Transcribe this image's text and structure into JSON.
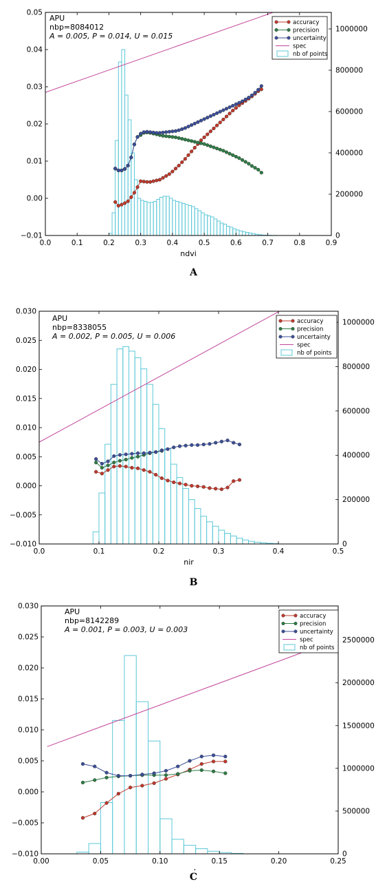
{
  "panels": [
    {
      "letter": "A"
    },
    {
      "letter": "B"
    },
    {
      "letter": "C"
    }
  ],
  "colors": {
    "accuracy": "#c0392b",
    "precision": "#2e7d46",
    "uncertainty": "#3b4f9a",
    "spec": "#c2449a",
    "hist": "#5cc8d8"
  },
  "chart_data": [
    {
      "type": "line",
      "xlabel": "ndvi",
      "ylabel": "",
      "xlim": [
        0.0,
        0.9
      ],
      "ylim": [
        -0.01,
        0.05
      ],
      "y2lim": [
        0,
        1080000
      ],
      "x_ticks": [
        "0.0",
        "0.1",
        "0.2",
        "0.3",
        "0.4",
        "0.5",
        "0.6",
        "0.7",
        "0.8",
        "0.9"
      ],
      "x_tick_values": [
        0.0,
        0.1,
        0.2,
        0.3,
        0.4,
        0.5,
        0.6,
        0.7,
        0.8,
        0.9
      ],
      "y_ticks": [
        "−0.01",
        "0.00",
        "0.01",
        "0.02",
        "0.03",
        "0.04",
        "0.05"
      ],
      "y_tick_values": [
        -0.01,
        0.0,
        0.01,
        0.02,
        0.03,
        0.04,
        0.05
      ],
      "y2_ticks": [
        "0",
        "200000",
        "400000",
        "600000",
        "800000",
        "1000000"
      ],
      "y2_tick_values": [
        0,
        200000,
        400000,
        600000,
        800000,
        1000000
      ],
      "annotation": [
        "APU",
        "nbp=8084012",
        "A = 0.005, P = 0.014, U = 0.015"
      ],
      "legend": [
        "accuracy",
        "precision",
        "uncertainty",
        "spec",
        "nb of points"
      ],
      "legend_position": "top-right",
      "spec": {
        "x": [
          0.0,
          0.9
        ],
        "y": [
          0.0285,
          0.0555
        ]
      },
      "histogram": {
        "bin_width": 0.01,
        "x": [
          0.2,
          0.21,
          0.22,
          0.23,
          0.24,
          0.25,
          0.26,
          0.27,
          0.28,
          0.29,
          0.3,
          0.31,
          0.32,
          0.33,
          0.34,
          0.35,
          0.36,
          0.37,
          0.38,
          0.39,
          0.4,
          0.41,
          0.42,
          0.43,
          0.44,
          0.45,
          0.46,
          0.47,
          0.48,
          0.49,
          0.5,
          0.51,
          0.52,
          0.53,
          0.54,
          0.55,
          0.56,
          0.57,
          0.58,
          0.59,
          0.6,
          0.61,
          0.62,
          0.63,
          0.64,
          0.65,
          0.66,
          0.67,
          0.68,
          0.69,
          0.7,
          0.71,
          0.72
        ],
        "counts": [
          10000,
          110000,
          460000,
          840000,
          900000,
          680000,
          560000,
          400000,
          270000,
          180000,
          170000,
          165000,
          160000,
          160000,
          165000,
          175000,
          185000,
          190000,
          190000,
          180000,
          170000,
          165000,
          160000,
          155000,
          150000,
          145000,
          140000,
          130000,
          120000,
          110000,
          100000,
          95000,
          90000,
          80000,
          70000,
          60000,
          55000,
          45000,
          40000,
          32000,
          27000,
          22000,
          18000,
          15000,
          12000,
          9000,
          6000,
          4000,
          2000,
          1500,
          1000,
          500,
          300
        ]
      },
      "series": [
        {
          "name": "accuracy",
          "x": [
            0.22,
            0.23,
            0.24,
            0.25,
            0.26,
            0.27,
            0.28,
            0.29,
            0.3,
            0.31,
            0.32,
            0.33,
            0.34,
            0.35,
            0.36,
            0.37,
            0.38,
            0.39,
            0.4,
            0.41,
            0.42,
            0.43,
            0.44,
            0.45,
            0.46,
            0.47,
            0.48,
            0.49,
            0.5,
            0.51,
            0.52,
            0.53,
            0.54,
            0.55,
            0.56,
            0.57,
            0.58,
            0.59,
            0.6,
            0.61,
            0.62,
            0.63,
            0.64,
            0.65,
            0.66,
            0.67,
            0.68
          ],
          "y": [
            -0.001,
            -0.002,
            -0.0017,
            -0.0013,
            -0.0008,
            0.0003,
            0.0015,
            0.003,
            0.0046,
            0.0045,
            0.0044,
            0.0044,
            0.0046,
            0.0048,
            0.005,
            0.0055,
            0.006,
            0.0065,
            0.0072,
            0.008,
            0.0088,
            0.0097,
            0.0106,
            0.0116,
            0.0126,
            0.0136,
            0.0146,
            0.0156,
            0.0164,
            0.0172,
            0.018,
            0.0188,
            0.0196,
            0.0204,
            0.0212,
            0.022,
            0.0228,
            0.0236,
            0.0243,
            0.025,
            0.0256,
            0.0262,
            0.0268,
            0.0274,
            0.0281,
            0.0288,
            0.0293
          ]
        },
        {
          "name": "precision",
          "x": [
            0.22,
            0.23,
            0.24,
            0.25,
            0.26,
            0.27,
            0.28,
            0.29,
            0.3,
            0.31,
            0.32,
            0.33,
            0.34,
            0.35,
            0.36,
            0.37,
            0.38,
            0.39,
            0.4,
            0.41,
            0.42,
            0.43,
            0.44,
            0.45,
            0.46,
            0.47,
            0.48,
            0.49,
            0.5,
            0.51,
            0.52,
            0.53,
            0.54,
            0.55,
            0.56,
            0.57,
            0.58,
            0.59,
            0.6,
            0.61,
            0.62,
            0.63,
            0.64,
            0.65,
            0.66,
            0.67,
            0.68
          ],
          "y": [
            0.008,
            0.0075,
            0.0075,
            0.0079,
            0.0088,
            0.011,
            0.0145,
            0.0165,
            0.017,
            0.0176,
            0.0177,
            0.0176,
            0.0174,
            0.0172,
            0.017,
            0.0168,
            0.0167,
            0.0166,
            0.0165,
            0.0164,
            0.0162,
            0.016,
            0.0158,
            0.0156,
            0.0154,
            0.0152,
            0.015,
            0.0148,
            0.0146,
            0.0143,
            0.014,
            0.0137,
            0.0134,
            0.0131,
            0.0128,
            0.0124,
            0.012,
            0.0116,
            0.0112,
            0.0108,
            0.0103,
            0.0098,
            0.0093,
            0.0087,
            0.0082,
            0.0077,
            0.0069
          ]
        },
        {
          "name": "uncertainty",
          "x": [
            0.22,
            0.23,
            0.24,
            0.25,
            0.26,
            0.27,
            0.28,
            0.29,
            0.3,
            0.31,
            0.32,
            0.33,
            0.34,
            0.35,
            0.36,
            0.37,
            0.38,
            0.39,
            0.4,
            0.41,
            0.42,
            0.43,
            0.44,
            0.45,
            0.46,
            0.47,
            0.48,
            0.49,
            0.5,
            0.51,
            0.52,
            0.53,
            0.54,
            0.55,
            0.56,
            0.57,
            0.58,
            0.59,
            0.6,
            0.61,
            0.62,
            0.63,
            0.64,
            0.65,
            0.66,
            0.67,
            0.68
          ],
          "y": [
            0.008,
            0.0075,
            0.0075,
            0.0079,
            0.0088,
            0.011,
            0.0145,
            0.0165,
            0.0174,
            0.0178,
            0.0179,
            0.0178,
            0.0177,
            0.0176,
            0.0176,
            0.0177,
            0.0178,
            0.0179,
            0.018,
            0.0181,
            0.0183,
            0.0186,
            0.0189,
            0.0193,
            0.0197,
            0.0201,
            0.0205,
            0.0209,
            0.0213,
            0.0217,
            0.0221,
            0.0225,
            0.0229,
            0.0233,
            0.0237,
            0.0241,
            0.0245,
            0.0249,
            0.0253,
            0.0257,
            0.0261,
            0.0266,
            0.0271,
            0.0277,
            0.0284,
            0.0292,
            0.0302
          ]
        }
      ]
    },
    {
      "type": "line",
      "xlabel": "nir",
      "ylabel": "",
      "xlim": [
        0.0,
        0.5
      ],
      "ylim": [
        -0.01,
        0.03
      ],
      "y2lim": [
        0,
        1050000
      ],
      "x_ticks": [
        "0.0",
        "0.1",
        "0.2",
        "0.3",
        "0.4",
        "0.5"
      ],
      "x_tick_values": [
        0.0,
        0.1,
        0.2,
        0.3,
        0.4,
        0.5
      ],
      "y_ticks": [
        "−0.010",
        "−0.005",
        "0.000",
        "0.005",
        "0.010",
        "0.015",
        "0.020",
        "0.025",
        "0.030"
      ],
      "y_tick_values": [
        -0.01,
        -0.005,
        0.0,
        0.005,
        0.01,
        0.015,
        0.02,
        0.025,
        0.03
      ],
      "y2_ticks": [
        "0",
        "200000",
        "400000",
        "600000",
        "800000",
        "1000000"
      ],
      "y2_tick_values": [
        0,
        200000,
        400000,
        600000,
        800000,
        1000000
      ],
      "annotation": [
        "APU",
        "nbp=8338055",
        "A = 0.002, P = 0.005, U = 0.006"
      ],
      "legend": [
        "accuracy",
        "precision",
        "uncertainty",
        "spec",
        "nb of points"
      ],
      "legend_position": "top-right",
      "spec": {
        "x": [
          0.0,
          0.5
        ],
        "y": [
          0.0075,
          0.0355
        ]
      },
      "histogram": {
        "bin_width": 0.01,
        "x": [
          0.09,
          0.1,
          0.11,
          0.12,
          0.13,
          0.14,
          0.15,
          0.16,
          0.17,
          0.18,
          0.19,
          0.2,
          0.21,
          0.22,
          0.23,
          0.24,
          0.25,
          0.26,
          0.27,
          0.28,
          0.29,
          0.3,
          0.31,
          0.32,
          0.33,
          0.34,
          0.35,
          0.36,
          0.37,
          0.38,
          0.39
        ],
        "counts": [
          55000,
          230000,
          450000,
          720000,
          880000,
          890000,
          870000,
          840000,
          790000,
          720000,
          630000,
          520000,
          430000,
          360000,
          300000,
          250000,
          200000,
          160000,
          125000,
          100000,
          80000,
          62000,
          48000,
          36000,
          26000,
          18000,
          12000,
          8000,
          5000,
          3000,
          1500
        ]
      },
      "series": [
        {
          "name": "accuracy",
          "x": [
            0.095,
            0.105,
            0.115,
            0.125,
            0.135,
            0.145,
            0.155,
            0.165,
            0.175,
            0.185,
            0.195,
            0.205,
            0.215,
            0.225,
            0.235,
            0.245,
            0.255,
            0.265,
            0.275,
            0.285,
            0.295,
            0.305,
            0.315,
            0.325,
            0.335
          ],
          "y": [
            0.0024,
            0.0021,
            0.0027,
            0.0033,
            0.0034,
            0.0033,
            0.0031,
            0.003,
            0.0027,
            0.0024,
            0.0019,
            0.0013,
            0.0009,
            0.0006,
            0.0004,
            0.0002,
            0.0,
            -0.0001,
            -0.0002,
            -0.0004,
            -0.0005,
            -0.0006,
            -0.0003,
            0.0008,
            0.001
          ]
        },
        {
          "name": "precision",
          "x": [
            0.095,
            0.105,
            0.115,
            0.125,
            0.135,
            0.145,
            0.155,
            0.165,
            0.175,
            0.185,
            0.195,
            0.205
          ],
          "y": [
            0.004,
            0.0031,
            0.0035,
            0.004,
            0.0043,
            0.0045,
            0.0048,
            0.005,
            0.0053,
            0.0056,
            0.0058,
            0.006
          ]
        },
        {
          "name": "uncertainty",
          "x": [
            0.095,
            0.105,
            0.115,
            0.125,
            0.135,
            0.145,
            0.155,
            0.165,
            0.175,
            0.185,
            0.195,
            0.205,
            0.215,
            0.225,
            0.235,
            0.245,
            0.255,
            0.265,
            0.275,
            0.285,
            0.295,
            0.305,
            0.315,
            0.325,
            0.335
          ],
          "y": [
            0.0046,
            0.0038,
            0.0042,
            0.0051,
            0.0053,
            0.0054,
            0.0055,
            0.0056,
            0.0056,
            0.0057,
            0.0058,
            0.0061,
            0.0063,
            0.0066,
            0.0068,
            0.0069,
            0.007,
            0.007,
            0.0071,
            0.0072,
            0.0074,
            0.0076,
            0.0078,
            0.0074,
            0.0071
          ]
        }
      ]
    },
    {
      "type": "line",
      "xlabel": "red",
      "ylabel": "",
      "xlim": [
        0.0,
        0.25
      ],
      "ylim": [
        -0.01,
        0.03
      ],
      "y2lim": [
        0,
        2900000
      ],
      "x_ticks": [
        "0.00",
        "0.05",
        "0.10",
        "0.15",
        "0.20",
        "0.25"
      ],
      "x_tick_values": [
        0.0,
        0.05,
        0.1,
        0.15,
        0.2,
        0.25
      ],
      "y_ticks": [
        "−0.010",
        "−0.005",
        "0.000",
        "0.005",
        "0.010",
        "0.015",
        "0.020",
        "0.025",
        "0.030"
      ],
      "y_tick_values": [
        -0.01,
        -0.005,
        0.0,
        0.005,
        0.01,
        0.015,
        0.02,
        0.025,
        0.03
      ],
      "y2_ticks": [
        "0",
        "500000",
        "1000000",
        "1500000",
        "2000000",
        "2500000"
      ],
      "y2_tick_values": [
        0,
        500000,
        1000000,
        1500000,
        2000000,
        2500000
      ],
      "annotation": [
        "APU",
        "nbp=8142289",
        "A = 0.001, P = 0.003, U = 0.003"
      ],
      "legend": [
        "accuracy",
        "precision",
        "uncertainty",
        "spec",
        "nb of points"
      ],
      "legend_position": "top-right",
      "spec": {
        "x": [
          0.005,
          0.22
        ],
        "y": [
          0.0073,
          0.0225
        ]
      },
      "histogram": {
        "bin_width": 0.01,
        "x": [
          0.03,
          0.04,
          0.05,
          0.06,
          0.07,
          0.08,
          0.09,
          0.1,
          0.11,
          0.12,
          0.13,
          0.14,
          0.15,
          0.16
        ],
        "counts": [
          20000,
          120000,
          600000,
          1560000,
          2320000,
          1780000,
          1320000,
          410000,
          170000,
          100000,
          60000,
          30000,
          15000,
          5000
        ]
      },
      "series": [
        {
          "name": "accuracy",
          "x": [
            0.035,
            0.045,
            0.055,
            0.065,
            0.075,
            0.085,
            0.095,
            0.105,
            0.115,
            0.125,
            0.135,
            0.145,
            0.155
          ],
          "y": [
            -0.0042,
            -0.0035,
            -0.0018,
            -0.0003,
            0.0007,
            0.001,
            0.0014,
            0.0021,
            0.0028,
            0.0036,
            0.0045,
            0.0049,
            0.0049
          ]
        },
        {
          "name": "precision",
          "x": [
            0.035,
            0.045,
            0.055,
            0.065,
            0.075,
            0.085,
            0.095,
            0.105,
            0.115,
            0.125,
            0.135,
            0.145,
            0.155
          ],
          "y": [
            0.0015,
            0.0019,
            0.0023,
            0.0025,
            0.0026,
            0.0027,
            0.0027,
            0.0027,
            0.0029,
            0.0034,
            0.0035,
            0.0033,
            0.003
          ]
        },
        {
          "name": "uncertainty",
          "x": [
            0.035,
            0.045,
            0.055,
            0.065,
            0.075,
            0.085,
            0.095,
            0.105,
            0.115,
            0.125,
            0.135,
            0.145,
            0.155
          ],
          "y": [
            0.0045,
            0.0041,
            0.0031,
            0.0026,
            0.0026,
            0.0028,
            0.003,
            0.0034,
            0.0041,
            0.005,
            0.0057,
            0.0059,
            0.0057
          ]
        }
      ]
    }
  ]
}
